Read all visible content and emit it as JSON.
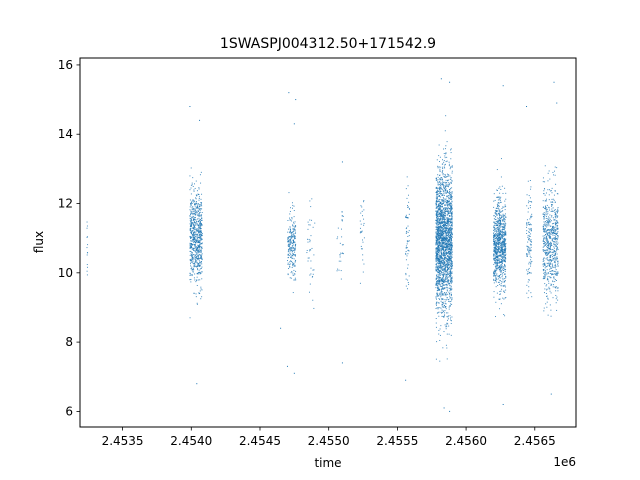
{
  "chart_data": {
    "type": "scatter",
    "title": "1SWASPJ004312.50+171542.9",
    "xlabel": "time",
    "ylabel": "flux",
    "x_offset_label": "1e6",
    "xlim": [
      2453190,
      2456800
    ],
    "ylim": [
      5.55,
      16.2
    ],
    "x_ticks": [
      2453500,
      2454000,
      2454500,
      2455000,
      2455500,
      2456000,
      2456500
    ],
    "x_tick_labels": [
      "2.4535",
      "2.4540",
      "2.4545",
      "2.4550",
      "2.4555",
      "2.4560",
      "2.4565"
    ],
    "y_ticks": [
      6,
      8,
      10,
      12,
      14,
      16
    ],
    "y_tick_labels": [
      "6",
      "8",
      "10",
      "12",
      "14",
      "16"
    ],
    "grid": false,
    "legend": "none",
    "marker_color": "#1f77b4",
    "series": [
      {
        "clusters": [
          {
            "t_start": 2453240,
            "t_end": 2453245,
            "flux_center": 10.8,
            "flux_spread": 0.9,
            "count": 14
          },
          {
            "t_start": 2453990,
            "t_end": 2454080,
            "flux_center": 11.0,
            "flux_spread": 1.1,
            "count": 700
          },
          {
            "t_start": 2454700,
            "t_end": 2454760,
            "flux_center": 10.8,
            "flux_spread": 0.8,
            "count": 230
          },
          {
            "t_start": 2454840,
            "t_end": 2454900,
            "flux_center": 10.7,
            "flux_spread": 1.1,
            "count": 40
          },
          {
            "t_start": 2455060,
            "t_end": 2455110,
            "flux_center": 10.8,
            "flux_spread": 1.2,
            "count": 30
          },
          {
            "t_start": 2455230,
            "t_end": 2455260,
            "flux_center": 10.9,
            "flux_spread": 1.1,
            "count": 30
          },
          {
            "t_start": 2455560,
            "t_end": 2455590,
            "flux_center": 10.9,
            "flux_spread": 1.4,
            "count": 60
          },
          {
            "t_start": 2455780,
            "t_end": 2455900,
            "flux_center": 10.9,
            "flux_spread": 1.7,
            "count": 2200
          },
          {
            "t_start": 2456200,
            "t_end": 2456290,
            "flux_center": 10.8,
            "flux_spread": 1.1,
            "count": 900
          },
          {
            "t_start": 2456440,
            "t_end": 2456480,
            "flux_center": 10.8,
            "flux_spread": 1.2,
            "count": 120
          },
          {
            "t_start": 2456560,
            "t_end": 2456670,
            "flux_center": 10.9,
            "flux_spread": 1.3,
            "count": 650
          }
        ],
        "outliers": [
          {
            "t": 2453990,
            "flux": 14.8
          },
          {
            "t": 2454060,
            "flux": 14.4
          },
          {
            "t": 2454040,
            "flux": 6.8
          },
          {
            "t": 2454710,
            "flux": 15.2
          },
          {
            "t": 2454760,
            "flux": 15.0
          },
          {
            "t": 2454750,
            "flux": 14.3
          },
          {
            "t": 2454700,
            "flux": 7.3
          },
          {
            "t": 2454750,
            "flux": 7.1
          },
          {
            "t": 2454650,
            "flux": 8.4
          },
          {
            "t": 2455100,
            "flux": 13.2
          },
          {
            "t": 2455100,
            "flux": 7.4
          },
          {
            "t": 2455560,
            "flux": 6.9
          },
          {
            "t": 2455820,
            "flux": 15.6
          },
          {
            "t": 2455880,
            "flux": 15.5
          },
          {
            "t": 2455840,
            "flux": 6.1
          },
          {
            "t": 2455880,
            "flux": 6.0
          },
          {
            "t": 2456270,
            "flux": 15.4
          },
          {
            "t": 2456270,
            "flux": 6.2
          },
          {
            "t": 2456440,
            "flux": 14.8
          },
          {
            "t": 2456640,
            "flux": 15.5
          },
          {
            "t": 2456660,
            "flux": 14.9
          },
          {
            "t": 2456620,
            "flux": 6.5
          }
        ]
      }
    ]
  }
}
